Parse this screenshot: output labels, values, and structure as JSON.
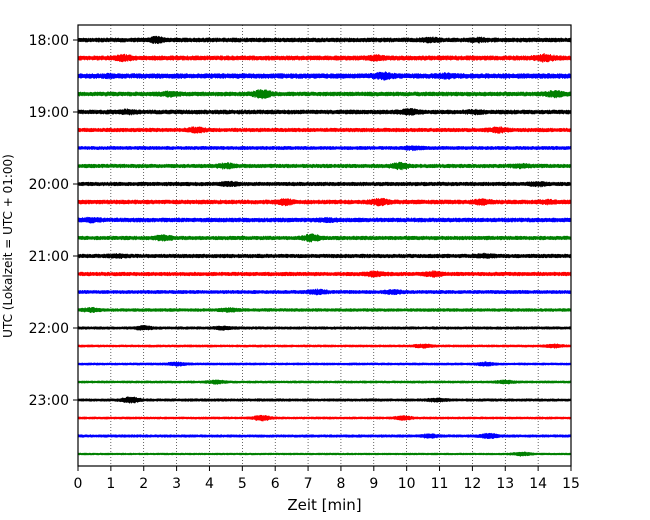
{
  "chart_data": {
    "type": "line",
    "title": "",
    "xlabel": "Zeit  [min]",
    "ylabel": "UTC (Lokalzeit = UTC + 01:00)",
    "xlim": [
      0,
      15
    ],
    "x_ticks": [
      0,
      1,
      2,
      3,
      4,
      5,
      6,
      7,
      8,
      9,
      10,
      11,
      12,
      13,
      14,
      15
    ],
    "x_tick_labels": [
      "0",
      "1",
      "2",
      "3",
      "4",
      "5",
      "6",
      "7",
      "8",
      "9",
      "10",
      "11",
      "12",
      "13",
      "14",
      "15"
    ],
    "grid": "vertical dotted lines at each minute",
    "trace_interval_min": 15,
    "start_time": "18:00",
    "y_tick_labels": [
      "18:00",
      "19:00",
      "20:00",
      "21:00",
      "22:00",
      "23:00"
    ],
    "color_cycle": [
      "#000000",
      "#ff0000",
      "#0000ff",
      "#008000"
    ],
    "traces": [
      {
        "label": "18:00",
        "color": "#000000",
        "amplitude": 1.0,
        "events": [
          {
            "t": 2.4,
            "a": 2.0
          },
          {
            "t": 10.7,
            "a": 1.8
          },
          {
            "t": 12.2,
            "a": 1.6
          }
        ]
      },
      {
        "label": "18:15",
        "color": "#ff0000",
        "amplitude": 1.1,
        "events": [
          {
            "t": 1.4,
            "a": 2.0
          },
          {
            "t": 9.1,
            "a": 1.8
          },
          {
            "t": 14.2,
            "a": 2.4
          }
        ]
      },
      {
        "label": "18:30",
        "color": "#0000ff",
        "amplitude": 1.2,
        "events": [
          {
            "t": 1.0,
            "a": 1.5
          },
          {
            "t": 9.3,
            "a": 2.4
          },
          {
            "t": 11.2,
            "a": 1.8
          }
        ]
      },
      {
        "label": "18:45",
        "color": "#008000",
        "amplitude": 1.0,
        "events": [
          {
            "t": 2.8,
            "a": 1.8
          },
          {
            "t": 5.6,
            "a": 2.6
          },
          {
            "t": 14.5,
            "a": 2.0
          }
        ]
      },
      {
        "label": "19:00",
        "color": "#000000",
        "amplitude": 1.0,
        "events": [
          {
            "t": 1.5,
            "a": 1.6
          },
          {
            "t": 10.1,
            "a": 2.0
          },
          {
            "t": 12.1,
            "a": 1.5
          }
        ]
      },
      {
        "label": "19:15",
        "color": "#ff0000",
        "amplitude": 0.9,
        "events": [
          {
            "t": 3.6,
            "a": 1.8
          },
          {
            "t": 12.8,
            "a": 1.8
          }
        ]
      },
      {
        "label": "19:30",
        "color": "#0000ff",
        "amplitude": 0.8,
        "events": [
          {
            "t": 10.2,
            "a": 1.4
          }
        ]
      },
      {
        "label": "19:45",
        "color": "#008000",
        "amplitude": 0.9,
        "events": [
          {
            "t": 4.5,
            "a": 1.8
          },
          {
            "t": 9.8,
            "a": 2.0
          },
          {
            "t": 13.5,
            "a": 1.5
          }
        ]
      },
      {
        "label": "20:00",
        "color": "#000000",
        "amplitude": 0.9,
        "events": [
          {
            "t": 4.6,
            "a": 1.5
          },
          {
            "t": 14.0,
            "a": 1.6
          }
        ]
      },
      {
        "label": "20:15",
        "color": "#ff0000",
        "amplitude": 1.0,
        "events": [
          {
            "t": 6.3,
            "a": 2.0
          },
          {
            "t": 9.2,
            "a": 2.2
          },
          {
            "t": 12.3,
            "a": 1.8
          },
          {
            "t": 14.3,
            "a": 1.5
          }
        ]
      },
      {
        "label": "20:30",
        "color": "#0000ff",
        "amplitude": 1.0,
        "events": [
          {
            "t": 0.4,
            "a": 1.6
          },
          {
            "t": 7.6,
            "a": 1.4
          }
        ]
      },
      {
        "label": "20:45",
        "color": "#008000",
        "amplitude": 0.9,
        "events": [
          {
            "t": 2.6,
            "a": 1.8
          },
          {
            "t": 7.1,
            "a": 2.2
          }
        ]
      },
      {
        "label": "21:00",
        "color": "#000000",
        "amplitude": 0.9,
        "events": [
          {
            "t": 1.2,
            "a": 1.4
          },
          {
            "t": 12.4,
            "a": 1.5
          }
        ]
      },
      {
        "label": "21:15",
        "color": "#ff0000",
        "amplitude": 0.9,
        "events": [
          {
            "t": 9.0,
            "a": 1.8
          },
          {
            "t": 10.8,
            "a": 1.8
          }
        ]
      },
      {
        "label": "21:30",
        "color": "#0000ff",
        "amplitude": 0.8,
        "events": [
          {
            "t": 7.3,
            "a": 1.6
          },
          {
            "t": 9.6,
            "a": 1.4
          }
        ]
      },
      {
        "label": "21:45",
        "color": "#008000",
        "amplitude": 0.7,
        "events": [
          {
            "t": 0.4,
            "a": 1.4
          },
          {
            "t": 4.6,
            "a": 1.3
          }
        ]
      },
      {
        "label": "22:00",
        "color": "#000000",
        "amplitude": 0.6,
        "events": [
          {
            "t": 2.0,
            "a": 1.3
          },
          {
            "t": 4.4,
            "a": 1.2
          }
        ]
      },
      {
        "label": "22:15",
        "color": "#ff0000",
        "amplitude": 0.5,
        "events": [
          {
            "t": 10.5,
            "a": 1.2
          },
          {
            "t": 14.5,
            "a": 1.2
          }
        ]
      },
      {
        "label": "22:30",
        "color": "#0000ff",
        "amplitude": 0.5,
        "events": [
          {
            "t": 3.0,
            "a": 1.2
          },
          {
            "t": 12.4,
            "a": 1.2
          }
        ]
      },
      {
        "label": "22:45",
        "color": "#008000",
        "amplitude": 0.5,
        "events": [
          {
            "t": 4.2,
            "a": 1.2
          },
          {
            "t": 13.0,
            "a": 1.2
          }
        ]
      },
      {
        "label": "23:00",
        "color": "#000000",
        "amplitude": 0.6,
        "events": [
          {
            "t": 1.6,
            "a": 1.8
          },
          {
            "t": 10.9,
            "a": 1.2
          }
        ]
      },
      {
        "label": "23:15",
        "color": "#ff0000",
        "amplitude": 0.5,
        "events": [
          {
            "t": 5.6,
            "a": 1.6
          },
          {
            "t": 9.9,
            "a": 1.3
          }
        ]
      },
      {
        "label": "23:30",
        "color": "#0000ff",
        "amplitude": 0.6,
        "events": [
          {
            "t": 10.7,
            "a": 1.3
          },
          {
            "t": 12.5,
            "a": 1.6
          }
        ]
      },
      {
        "label": "23:45",
        "color": "#008000",
        "amplitude": 0.4,
        "events": [
          {
            "t": 13.5,
            "a": 1.2
          }
        ]
      }
    ]
  }
}
